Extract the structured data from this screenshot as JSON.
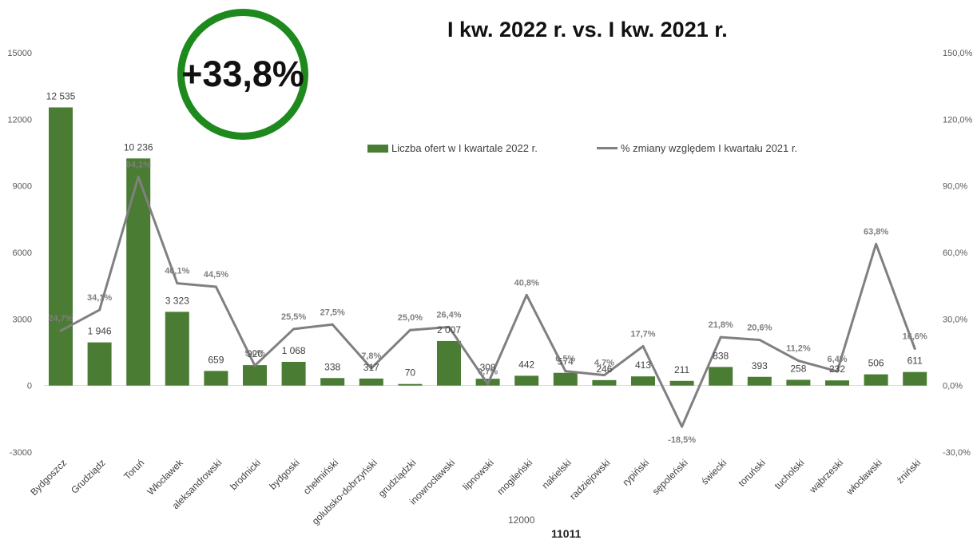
{
  "title": "I kw. 2022 r. vs. I kw. 2021 r.",
  "badge": "+33,8%",
  "stray_labels": [
    "12000",
    "11011"
  ],
  "colors": {
    "bar": "#4a7c33",
    "line": "#808080",
    "badge": "#1e8a1e"
  },
  "chart_data": {
    "type": "bar",
    "categories": [
      "Bydgoszcz",
      "Grudziądz",
      "Toruń",
      "Włocławek",
      "aleksandrowski",
      "brodnicki",
      "bydgoski",
      "chełmiński",
      "golubsko-dobrzyński",
      "grudziądzki",
      "inowrocławski",
      "lipnowski",
      "mogileński",
      "nakielski",
      "radziejowski",
      "rypiński",
      "sępoleński",
      "świecki",
      "toruński",
      "tucholski",
      "wąbrzeski",
      "włocławski",
      "żniński"
    ],
    "series": [
      {
        "name": "Liczba ofert w I kwartale 2022 r.",
        "type": "bar",
        "axis": "left",
        "values": [
          12535,
          1946,
          10236,
          3323,
          659,
          920,
          1068,
          338,
          317,
          70,
          2007,
          308,
          442,
          574,
          246,
          413,
          211,
          838,
          393,
          258,
          232,
          506,
          611
        ],
        "labels": [
          "12 535",
          "1 946",
          "10 236",
          "3 323",
          "659",
          "920",
          "1 068",
          "338",
          "317",
          "70",
          "2 007",
          "308",
          "442",
          "574",
          "246",
          "413",
          "211",
          "838",
          "393",
          "258",
          "232",
          "506",
          "611"
        ]
      },
      {
        "name": "% zmiany względem I kwartału 2021 r.",
        "type": "line",
        "axis": "right",
        "values": [
          24.7,
          34.1,
          94.1,
          46.1,
          44.5,
          9.0,
          25.5,
          27.5,
          7.8,
          25.0,
          26.4,
          0.7,
          40.8,
          6.5,
          4.7,
          17.7,
          -18.5,
          21.8,
          20.6,
          11.2,
          6.4,
          63.8,
          16.6
        ],
        "labels": [
          "24,7%",
          "34,1%",
          "94,1%",
          "46,1%",
          "44,5%",
          "9,0%",
          "25,5%",
          "27,5%",
          "7,8%",
          "25,0%",
          "26,4%",
          "0,7%",
          "40,8%",
          "6,5%",
          "4,7%",
          "17,7%",
          "-18,5%",
          "21,8%",
          "20,6%",
          "11,2%",
          "6,4%",
          "63,8%",
          "16,6%"
        ]
      }
    ],
    "y_left": {
      "ylim": [
        -3000,
        15000
      ],
      "ticks": [
        "-3000",
        "0",
        "3000",
        "6000",
        "9000",
        "12000",
        "15000"
      ]
    },
    "y_right": {
      "ylim": [
        -30,
        150
      ],
      "ticks": [
        "-30,0%",
        "0,0%",
        "30,0%",
        "60,0%",
        "90,0%",
        "120,0%",
        "150,0%"
      ]
    },
    "grid": false,
    "legend": "top-center"
  }
}
